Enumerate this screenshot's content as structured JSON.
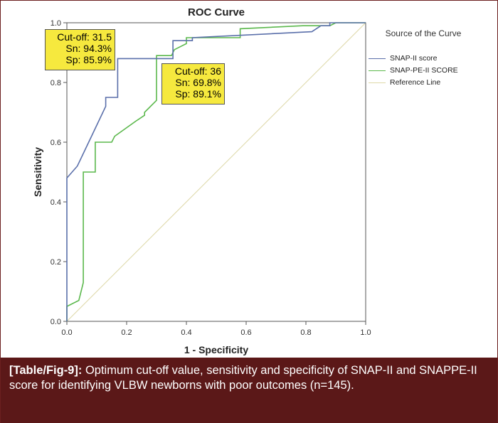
{
  "chart_data": {
    "type": "line",
    "title": "ROC Curve",
    "xlabel": "1 - Specificity",
    "ylabel": "Sensitivity",
    "xlim": [
      0,
      1
    ],
    "ylim": [
      0,
      1
    ],
    "x_ticks": [
      "0.0",
      "0.2",
      "0.4",
      "0.6",
      "0.8",
      "1.0"
    ],
    "y_ticks": [
      "0.0",
      "0.2",
      "0.4",
      "0.6",
      "0.8",
      "1.0"
    ],
    "legend": {
      "title": "Source of the Curve",
      "position": "right"
    },
    "series": [
      {
        "name": "SNAP-II score",
        "color": "#5a6faa",
        "x": [
          0.0,
          0.0,
          0.035,
          0.13,
          0.13,
          0.17,
          0.17,
          0.355,
          0.355,
          0.42,
          0.42,
          0.82,
          0.85,
          0.88,
          0.88,
          1.0
        ],
        "y": [
          0.0,
          0.48,
          0.52,
          0.72,
          0.75,
          0.75,
          0.88,
          0.88,
          0.94,
          0.94,
          0.95,
          0.97,
          0.99,
          0.99,
          1.0,
          1.0
        ]
      },
      {
        "name": "SNAP-PE-II SCORE",
        "color": "#5bb84c",
        "x": [
          0.0,
          0.0,
          0.04,
          0.055,
          0.055,
          0.065,
          0.065,
          0.095,
          0.095,
          0.15,
          0.16,
          0.23,
          0.26,
          0.26,
          0.3,
          0.3,
          0.35,
          0.36,
          0.4,
          0.4,
          0.58,
          0.58,
          0.79,
          0.84,
          0.88,
          0.9,
          0.9,
          1.0
        ],
        "y": [
          0.0,
          0.05,
          0.07,
          0.13,
          0.5,
          0.5,
          0.5,
          0.5,
          0.6,
          0.6,
          0.62,
          0.67,
          0.69,
          0.7,
          0.74,
          0.89,
          0.89,
          0.91,
          0.93,
          0.95,
          0.95,
          0.98,
          0.99,
          0.99,
          0.99,
          1.0,
          1.0,
          1.0
        ]
      },
      {
        "name": "Reference Line",
        "color": "#ded8a8",
        "x": [
          0.0,
          1.0
        ],
        "y": [
          0.0,
          1.0
        ]
      }
    ],
    "annotations": [
      {
        "lines": [
          "Cut-off: 31.5",
          "Sn: 94.3%",
          "Sp: 85.9%"
        ],
        "color": "#f6e93e"
      },
      {
        "lines": [
          "Cut-off: 36",
          "Sn: 69.8%",
          "Sp: 89.1%"
        ],
        "color": "#f6e93e"
      }
    ]
  },
  "caption": {
    "tag": "[Table/Fig-9]:",
    "text": " Optimum cut-off value, sensitivity and specificity of SNAP-II and SNAPPE-II score for identifying VLBW newborns with poor outcomes (n=145)."
  }
}
